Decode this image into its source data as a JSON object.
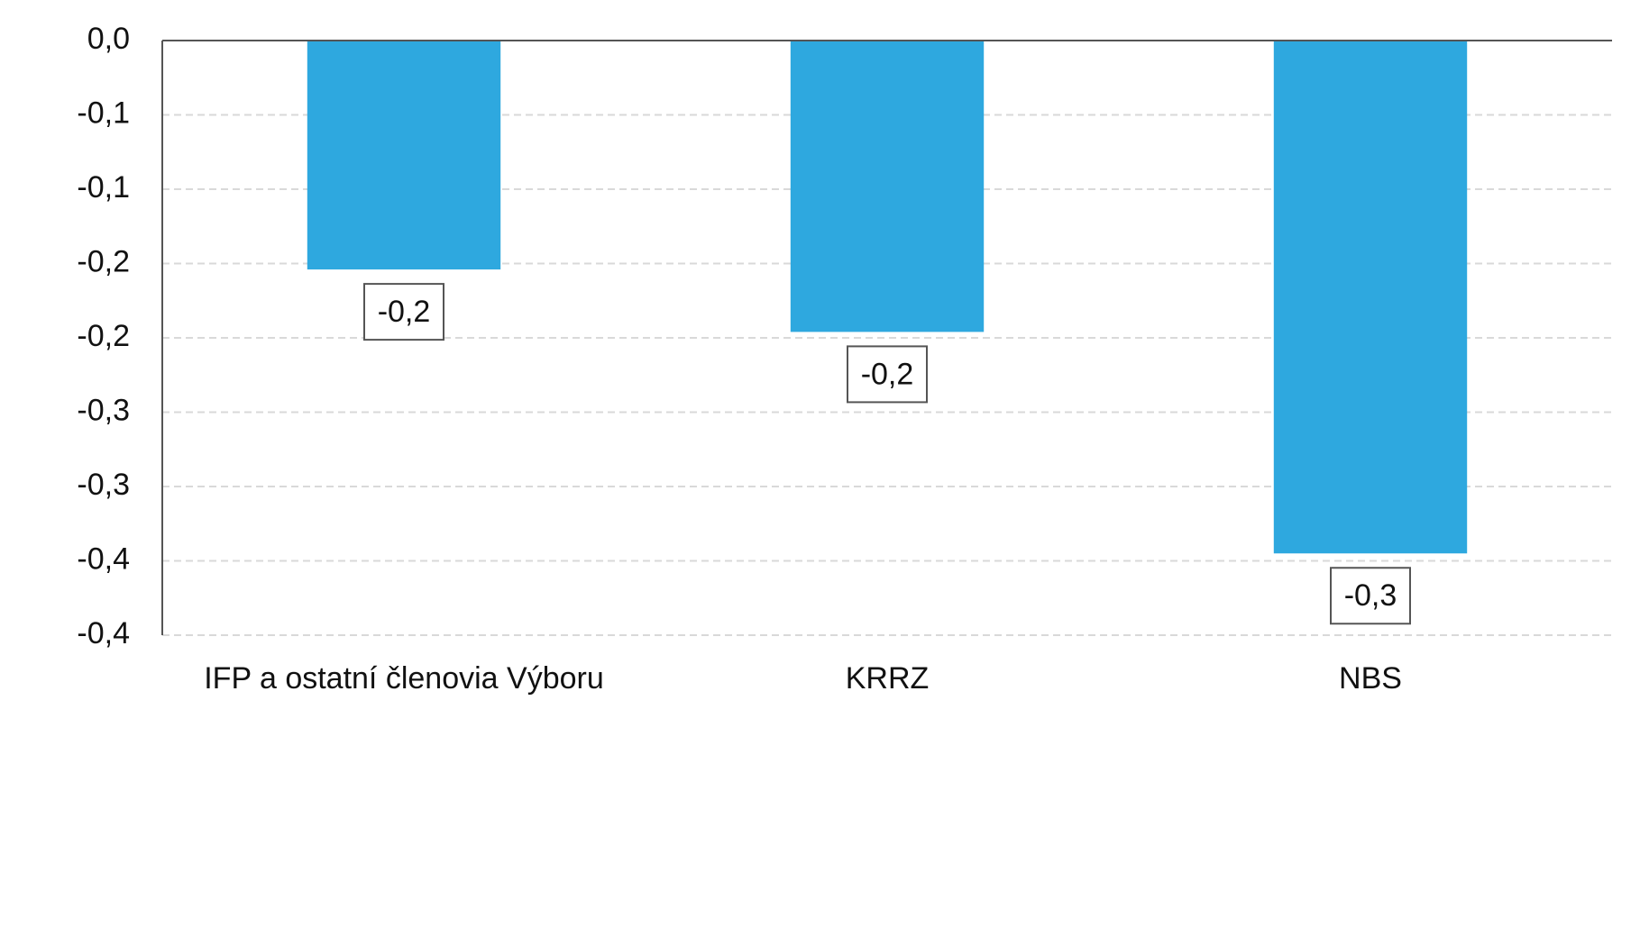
{
  "chart_data": {
    "type": "bar",
    "categories": [
      "IFP a ostatní členovia Výboru",
      "KRRZ",
      "NBS"
    ],
    "values": [
      -0.154,
      -0.196,
      -0.345
    ],
    "value_labels": [
      "-0,2",
      "-0,2",
      "-0,3"
    ],
    "color": "#2ea8df",
    "ylim": [
      -0.4,
      0
    ],
    "yticks": [
      {
        "value": 0,
        "label": "0,0"
      },
      {
        "value": -0.05,
        "label": "-0,1"
      },
      {
        "value": -0.1,
        "label": "-0,1"
      },
      {
        "value": -0.15,
        "label": "-0,2"
      },
      {
        "value": -0.2,
        "label": "-0,2"
      },
      {
        "value": -0.25,
        "label": "-0,3"
      },
      {
        "value": -0.3,
        "label": "-0,3"
      },
      {
        "value": -0.35,
        "label": "-0,4"
      },
      {
        "value": -0.4,
        "label": "-0,4"
      }
    ],
    "grid": true
  }
}
